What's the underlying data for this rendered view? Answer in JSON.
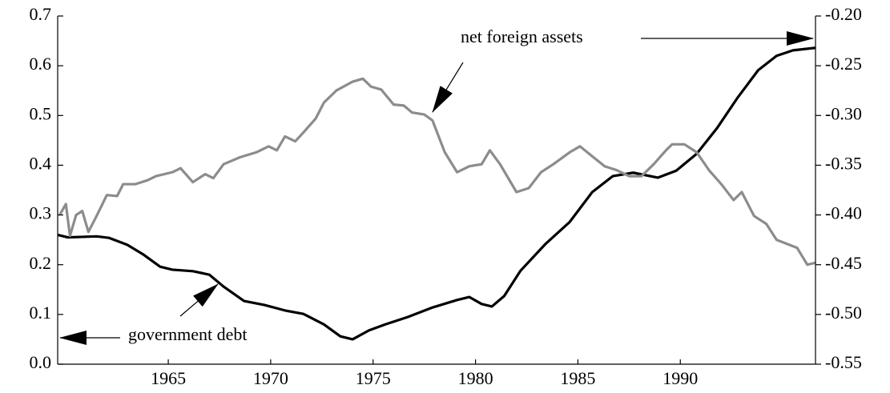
{
  "chart_data": {
    "type": "line",
    "xlim": [
      1959.6,
      1996.6
    ],
    "xticks": [
      1965,
      1970,
      1975,
      1980,
      1985,
      1990
    ],
    "ylim": [
      0,
      0.7
    ],
    "yticks": [
      {
        "value": 0,
        "label": "0.0"
      },
      0.1,
      0.2,
      0.3,
      0.4,
      0.5,
      0.6,
      0.7
    ],
    "y2lim": [
      -0.55,
      -0.2
    ],
    "y2ticks": [
      -0.55,
      {
        "value": -0.5,
        "label": "-0.50"
      },
      -0.45,
      {
        "value": -0.4,
        "label": "-0.40"
      },
      -0.35,
      {
        "value": -0.3,
        "label": "-0.30"
      },
      -0.25,
      {
        "value": -0.2,
        "label": "-0.20"
      }
    ],
    "series": [
      {
        "name": "government debt",
        "color": "#000000",
        "x": [
          1959.6,
          1960.1,
          1961.5,
          1962.1,
          1963.0,
          1963.8,
          1964.6,
          1965.2,
          1966.2,
          1967.0,
          1967.7,
          1968.7,
          1969.7,
          1970.7,
          1971.6,
          1972.6,
          1973.4,
          1974.0,
          1974.8,
          1975.6,
          1976.7,
          1977.9,
          1979.1,
          1979.7,
          1980.3,
          1980.8,
          1981.4,
          1982.2,
          1983.4,
          1984.6,
          1985.7,
          1986.7,
          1987.7,
          1988.9,
          1989.8,
          1990.8,
          1991.8,
          1992.8,
          1993.8,
          1994.7,
          1995.5,
          1996.6
        ],
        "values": [
          0.26,
          0.255,
          0.257,
          0.254,
          0.24,
          0.22,
          0.196,
          0.19,
          0.187,
          0.18,
          0.156,
          0.127,
          0.119,
          0.108,
          0.101,
          0.08,
          0.056,
          0.05,
          0.068,
          0.08,
          0.095,
          0.114,
          0.129,
          0.135,
          0.121,
          0.116,
          0.137,
          0.188,
          0.241,
          0.286,
          0.346,
          0.378,
          0.385,
          0.375,
          0.389,
          0.423,
          0.475,
          0.536,
          0.591,
          0.62,
          0.631,
          0.636
        ]
      },
      {
        "name": "net foreign assets",
        "color": "#8c8c8c",
        "axis": "y2",
        "x": [
          1959.7,
          1960.0,
          1960.2,
          1960.5,
          1960.8,
          1961.1,
          1961.5,
          1962.0,
          1962.5,
          1962.8,
          1963.4,
          1964.0,
          1964.4,
          1965.2,
          1965.6,
          1966.2,
          1966.8,
          1967.2,
          1967.7,
          1968.5,
          1969.3,
          1969.9,
          1970.3,
          1970.7,
          1971.2,
          1971.6,
          1972.2,
          1972.6,
          1973.2,
          1974.0,
          1974.5,
          1974.9,
          1975.4,
          1976.0,
          1976.5,
          1976.9,
          1977.5,
          1977.9,
          1978.5,
          1979.1,
          1979.7,
          1980.3,
          1980.7,
          1981.2,
          1982.0,
          1982.6,
          1983.2,
          1983.8,
          1984.6,
          1985.1,
          1985.7,
          1986.3,
          1986.9,
          1987.5,
          1988.1,
          1988.7,
          1989.3,
          1989.6,
          1990.2,
          1990.8,
          1991.4,
          1992.0,
          1992.6,
          1993.0,
          1993.6,
          1994.2,
          1994.7,
          1995.2,
          1995.7,
          1996.2,
          1996.6
        ],
        "values": [
          -0.4,
          -0.389,
          -0.421,
          -0.4,
          -0.396,
          -0.417,
          -0.401,
          -0.38,
          -0.381,
          -0.369,
          -0.369,
          -0.365,
          -0.361,
          -0.357,
          -0.353,
          -0.367,
          -0.359,
          -0.363,
          -0.349,
          -0.342,
          -0.337,
          -0.331,
          -0.335,
          -0.321,
          -0.326,
          -0.317,
          -0.303,
          -0.287,
          -0.275,
          -0.266,
          -0.263,
          -0.271,
          -0.274,
          -0.289,
          -0.29,
          -0.297,
          -0.299,
          -0.305,
          -0.337,
          -0.357,
          -0.351,
          -0.349,
          -0.335,
          -0.349,
          -0.377,
          -0.373,
          -0.357,
          -0.349,
          -0.337,
          -0.331,
          -0.341,
          -0.351,
          -0.355,
          -0.361,
          -0.361,
          -0.349,
          -0.335,
          -0.329,
          -0.329,
          -0.337,
          -0.355,
          -0.369,
          -0.385,
          -0.377,
          -0.401,
          -0.409,
          -0.425,
          -0.429,
          -0.433,
          -0.45,
          -0.448
        ]
      }
    ]
  }
}
